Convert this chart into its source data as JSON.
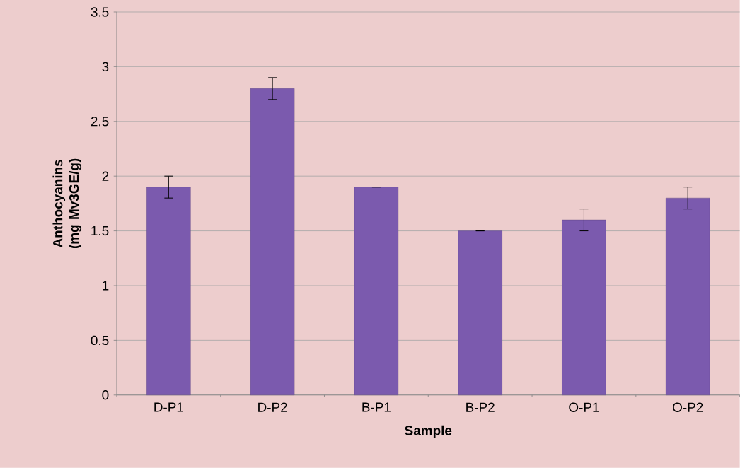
{
  "chart_data": {
    "type": "bar",
    "xlabel": "Sample",
    "ylabel": "Anthocyanins (mg Mv3GE/g)",
    "categories": [
      "D-P1",
      "D-P2",
      "B-P1",
      "B-P2",
      "O-P1",
      "O-P2"
    ],
    "values": [
      1.9,
      2.8,
      1.9,
      1.5,
      1.6,
      1.8
    ],
    "errors": [
      0.1,
      0.1,
      0,
      0,
      0.1,
      0.1
    ],
    "color": "#7b5aae",
    "ylim": [
      0,
      3.5
    ],
    "yticks": [
      0,
      0.5,
      1,
      1.5,
      2,
      2.5,
      3,
      3.5
    ],
    "grid": "y"
  }
}
